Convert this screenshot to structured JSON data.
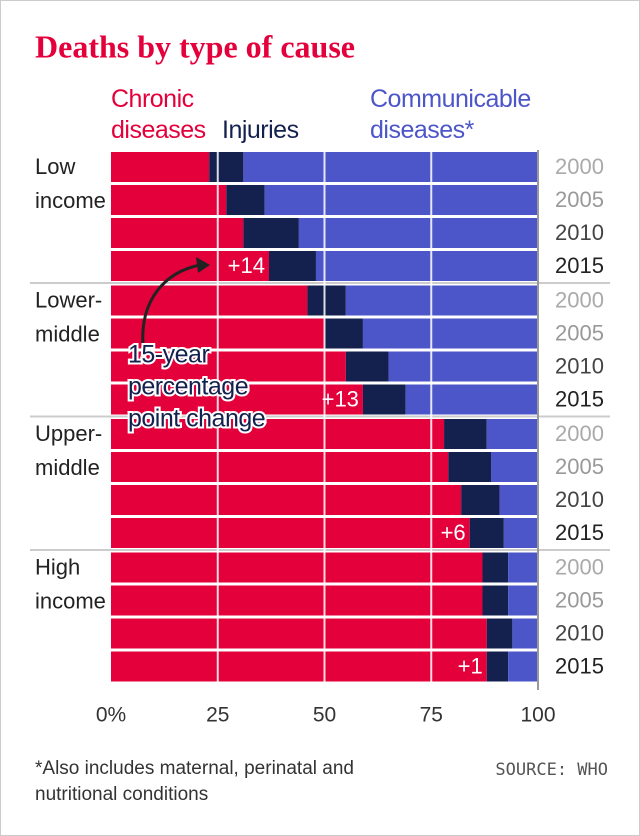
{
  "chart_data": {
    "type": "stacked-bar-horizontal",
    "title": "Deaths by type of cause",
    "years": [
      "2000",
      "2005",
      "2010",
      "2015"
    ],
    "groups": [
      {
        "label": [
          "Low",
          "income"
        ],
        "change": "+14"
      },
      {
        "label": [
          "Lower-",
          "middle"
        ],
        "change": "+13"
      },
      {
        "label": [
          "Upper-",
          "middle"
        ],
        "change": "+6"
      },
      {
        "label": [
          "High",
          "income"
        ],
        "change": "+1"
      }
    ],
    "series": [
      {
        "name": "Chronic diseases",
        "color": "#e4003b",
        "values": [
          [
            23,
            27,
            31,
            37
          ],
          [
            46,
            50,
            55,
            59
          ],
          [
            78,
            79,
            82,
            84
          ],
          [
            87,
            87,
            88,
            88
          ]
        ]
      },
      {
        "name": "Injuries",
        "color": "#14214f",
        "values": [
          [
            8,
            9,
            13,
            11
          ],
          [
            9,
            9,
            10,
            10
          ],
          [
            10,
            10,
            9,
            8
          ],
          [
            6,
            6,
            6,
            5
          ]
        ]
      },
      {
        "name": "Communicable diseases*",
        "color": "#4d56c8",
        "values": [
          [
            69,
            64,
            56,
            52
          ],
          [
            45,
            41,
            35,
            31
          ],
          [
            12,
            11,
            9,
            8
          ],
          [
            7,
            7,
            6,
            7
          ]
        ]
      }
    ],
    "xlim": [
      0,
      100
    ],
    "xticks": [
      {
        "value": 0,
        "label": "0%"
      },
      25,
      50,
      75,
      100
    ],
    "annotation": [
      "15-year",
      "percentage",
      "point change"
    ],
    "footnote": "*Also includes maternal, perinatal and nutritional conditions",
    "source": "SOURCE: WHO"
  }
}
